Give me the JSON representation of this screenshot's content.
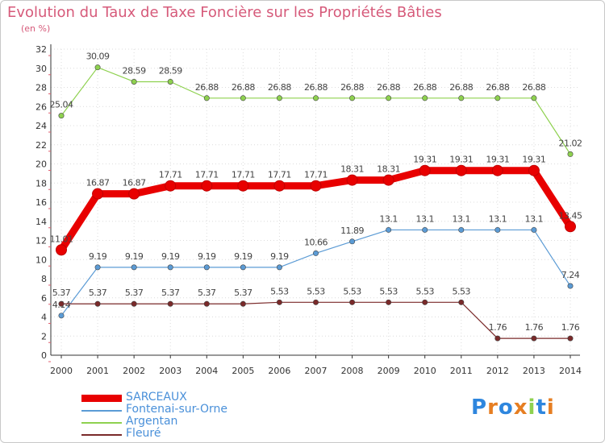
{
  "chart_data": {
    "type": "line",
    "title": "Evolution du Taux de Taxe Foncière sur les Propriétés Bâties",
    "subtitle": "(en %)",
    "x": [
      "2000",
      "2001",
      "2002",
      "2003",
      "2004",
      "2005",
      "2006",
      "2007",
      "2008",
      "2009",
      "2010",
      "2011",
      "2012",
      "2013",
      "2014"
    ],
    "ylim": [
      0,
      32
    ],
    "yticks": [
      0,
      2,
      4,
      6,
      8,
      10,
      12,
      14,
      16,
      18,
      20,
      22,
      24,
      26,
      28,
      30,
      32
    ],
    "series": [
      {
        "name": "Argentan",
        "color": "#8ed14f",
        "values": [
          25.04,
          30.09,
          28.59,
          28.59,
          26.88,
          26.88,
          26.88,
          26.88,
          26.88,
          26.88,
          26.88,
          26.88,
          26.88,
          26.88,
          21.02
        ],
        "labels": [
          "25.04",
          "30.09",
          "28.59",
          "28.59",
          "26.88",
          "26.88",
          "26.88",
          "26.88",
          "26.88",
          "26.88",
          "26.88",
          "26.88",
          "26.88",
          "26.88",
          "21.02"
        ]
      },
      {
        "name": "Fontenai-sur-Orne",
        "color": "#5b9bd5",
        "values": [
          4.14,
          9.19,
          9.19,
          9.19,
          9.19,
          9.19,
          9.19,
          10.66,
          11.89,
          13.1,
          13.1,
          13.1,
          13.1,
          13.1,
          7.24
        ],
        "labels": [
          "4.14",
          "9.19",
          "9.19",
          "9.19",
          "9.19",
          "9.19",
          "9.19",
          "10.66",
          "11.89",
          "13.1",
          "13.1",
          "13.1",
          "13.1",
          "13.1",
          "7.24"
        ]
      },
      {
        "name": "Fleuré",
        "color": "#7a2a2a",
        "values": [
          5.37,
          5.37,
          5.37,
          5.37,
          5.37,
          5.37,
          5.53,
          5.53,
          5.53,
          5.53,
          5.53,
          5.53,
          1.76,
          1.76,
          1.76
        ],
        "labels": [
          "5.37",
          "5.37",
          "5.37",
          "5.37",
          "5.37",
          "5.37",
          "5.53",
          "5.53",
          "5.53",
          "5.53",
          "5.53",
          "5.53",
          "1.76",
          "1.76",
          "1.76"
        ]
      },
      {
        "name": "SARCEAUX",
        "color": "#e80000",
        "values": [
          11.01,
          16.87,
          16.87,
          17.71,
          17.71,
          17.71,
          17.71,
          17.71,
          18.31,
          18.31,
          19.31,
          19.31,
          19.31,
          19.31,
          13.45
        ],
        "labels": [
          "11.01",
          "16.87",
          "16.87",
          "17.71",
          "17.71",
          "17.71",
          "17.71",
          "17.71",
          "18.31",
          "18.31",
          "19.31",
          "19.31",
          "19.31",
          "19.31",
          "13.45"
        ]
      }
    ],
    "legend": [
      "SARCEAUX",
      "Fontenai-sur-Orne",
      "Argentan",
      "Fleuré"
    ],
    "legend_colors": [
      "#e80000",
      "#5b9bd5",
      "#8ed14f",
      "#7a2a2a"
    ]
  },
  "logo": {
    "text": "Proxiti"
  }
}
